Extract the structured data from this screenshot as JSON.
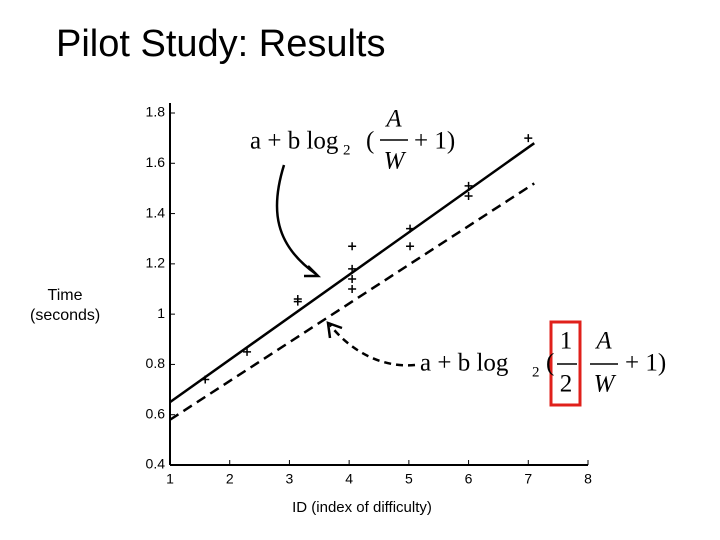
{
  "title": "Pilot Study: Results",
  "chart_data": {
    "type": "scatter",
    "xlabel": "ID (index of difficulty)",
    "ylabel": "Time (seconds)",
    "xlim": [
      1,
      8
    ],
    "ylim": [
      0.4,
      1.8
    ],
    "xticks": [
      1,
      2,
      3,
      4,
      5,
      6,
      7,
      8
    ],
    "yticks": [
      0.4,
      0.6,
      0.8,
      1,
      1.2,
      1.4,
      1.6,
      1.8
    ],
    "points": {
      "color": "#000000",
      "x": [
        1.59,
        2.29,
        3.14,
        3.14,
        4.05,
        4.05,
        4.05,
        4.05,
        5.02,
        5.02,
        6.0,
        6.0,
        7.0
      ],
      "values": [
        0.74,
        0.85,
        1.05,
        1.06,
        1.27,
        1.18,
        1.14,
        1.1,
        1.34,
        1.27,
        1.51,
        1.47,
        1.7
      ]
    },
    "lines": [
      {
        "x": [
          1,
          7.1
        ],
        "values": [
          0.65,
          1.68
        ],
        "color": "#000000",
        "dashed": false
      },
      {
        "x": [
          1,
          7.1
        ],
        "values": [
          0.58,
          1.52
        ],
        "color": "#000000",
        "dashed": true
      }
    ],
    "annotations": [
      {
        "parts": [
          "a + b log",
          "2",
          "(",
          "A",
          "W",
          "+ 1)"
        ]
      },
      {
        "parts": [
          "a + b log",
          "2",
          "(",
          "1",
          "2",
          "A",
          "W",
          "+ 1)"
        ]
      }
    ]
  }
}
